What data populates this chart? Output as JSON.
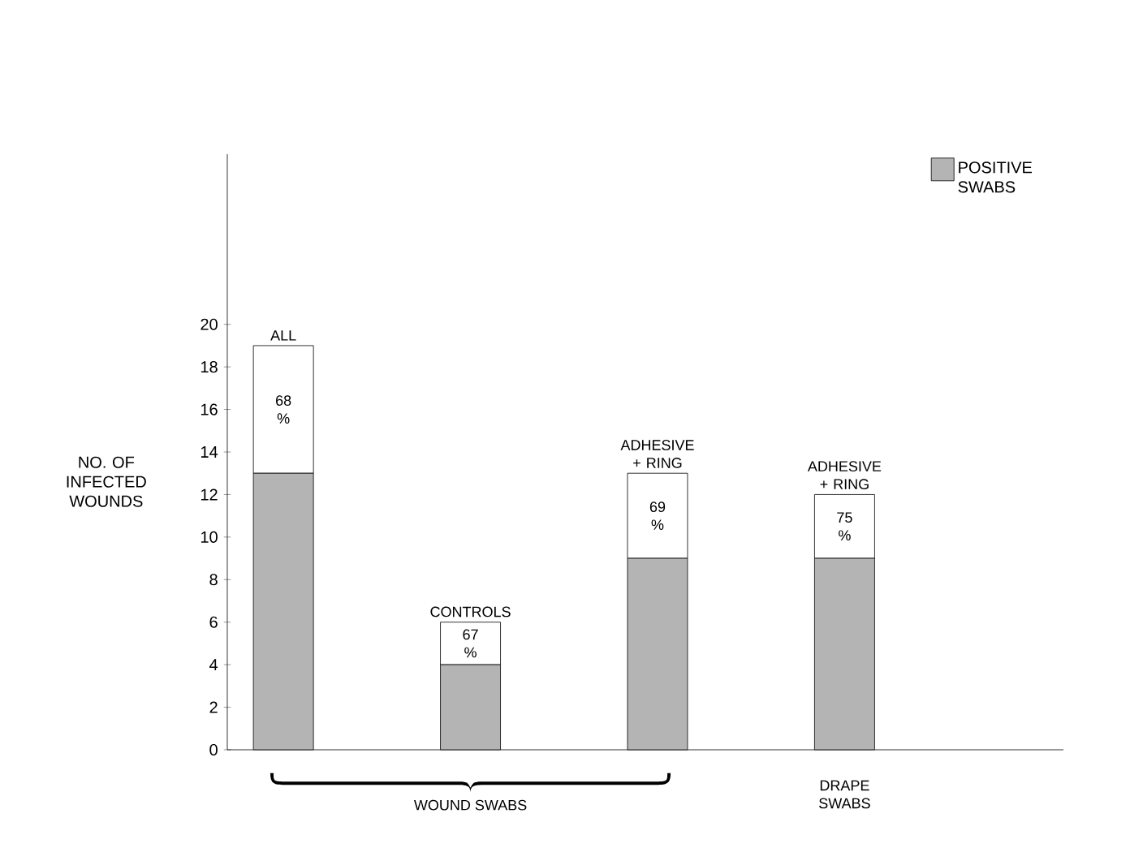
{
  "chart_data": {
    "type": "bar",
    "stacked": true,
    "categories": [
      "ALL",
      "CONTROLS",
      "ADHESIVE + RING",
      "ADHESIVE + RING"
    ],
    "series": [
      {
        "name": "POSITIVE SWABS",
        "color": "#b4b4b4",
        "values": [
          13,
          4,
          9,
          9
        ]
      },
      {
        "color": "#ffffff",
        "values": [
          6,
          2,
          4,
          3
        ]
      }
    ],
    "ylabel": "NO. OF INFECTED WOUNDS",
    "ylim": [
      0,
      28
    ],
    "yticks": [
      0,
      2,
      4,
      6,
      8,
      10,
      12,
      14,
      16,
      18,
      20
    ],
    "legend": "top right",
    "annotations": [
      "WOUND SWABS",
      "DRAPE SWABS",
      "68 %",
      "67 %",
      "69 %",
      "75 %"
    ]
  }
}
